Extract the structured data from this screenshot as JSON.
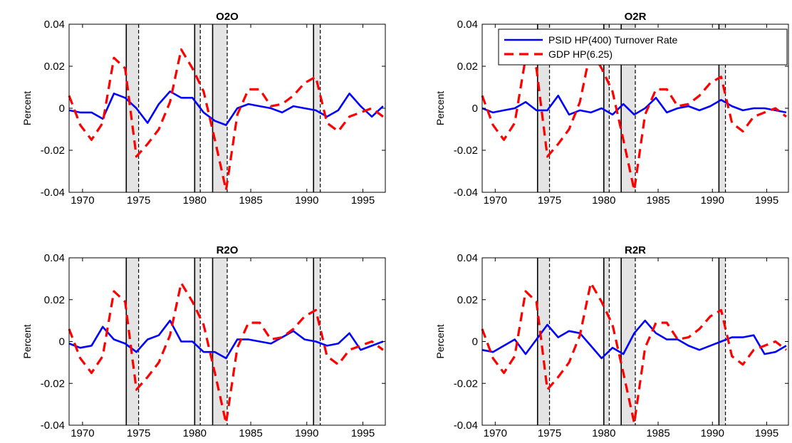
{
  "colors": {
    "turnover": "#0000ff",
    "gdp": "#ff0000",
    "recession_fill": "#e4e4e4",
    "axis": "#000000"
  },
  "legend": {
    "placement": "top-right of O2R panel",
    "entries": [
      "PSID HP(400) Turnover Rate",
      "GDP HP(6.25)"
    ]
  },
  "chart_data": [
    {
      "type": "line",
      "title": "O2O",
      "xlabel": "",
      "ylabel": "Percent",
      "xlim": [
        1968.8,
        1997
      ],
      "ylim": [
        -0.04,
        0.04
      ],
      "xticks": [
        1970,
        1975,
        1980,
        1985,
        1990,
        1995
      ],
      "yticks": [
        -0.04,
        -0.02,
        0,
        0.02,
        0.04
      ],
      "ytick_labels": [
        "-0.04",
        "-0.02",
        "0",
        "0.02",
        "0.04"
      ],
      "grid": false,
      "recessions": [
        [
          1973.9,
          1975.0
        ],
        [
          1980.0,
          1980.5
        ],
        [
          1981.6,
          1982.9
        ],
        [
          1990.6,
          1991.2
        ]
      ],
      "series": [
        {
          "name": "PSID HP(400) Turnover Rate",
          "style": "solid",
          "x": [
            1968.8,
            1969.8,
            1970.8,
            1971.8,
            1972.8,
            1973.8,
            1974.8,
            1975.8,
            1976.8,
            1977.8,
            1978.8,
            1979.8,
            1980.8,
            1981.8,
            1982.8,
            1983.8,
            1984.8,
            1985.8,
            1986.8,
            1987.8,
            1988.8,
            1989.8,
            1990.8,
            1991.8,
            1992.8,
            1993.8,
            1994.8,
            1995.8,
            1996.8
          ],
          "y": [
            -0.001,
            -0.002,
            -0.002,
            -0.005,
            0.007,
            0.005,
            0.0,
            -0.007,
            0.002,
            0.008,
            0.005,
            0.005,
            -0.002,
            -0.006,
            -0.008,
            0.0,
            0.002,
            0.001,
            0.0,
            -0.002,
            0.001,
            0.0,
            -0.001,
            -0.004,
            -0.001,
            0.007,
            0.001,
            -0.004,
            0.001
          ]
        },
        {
          "name": "GDP HP(6.25)",
          "style": "dashed",
          "x": [
            1968.8,
            1969.8,
            1970.8,
            1971.8,
            1972.8,
            1973.8,
            1974.8,
            1975.8,
            1976.8,
            1977.8,
            1978.8,
            1979.8,
            1980.8,
            1981.8,
            1982.8,
            1983.8,
            1984.8,
            1985.8,
            1986.8,
            1987.8,
            1988.8,
            1989.8,
            1990.8,
            1991.8,
            1992.8,
            1993.8,
            1994.8,
            1995.8,
            1996.8
          ],
          "y": [
            0.006,
            -0.008,
            -0.015,
            -0.007,
            0.024,
            0.019,
            -0.023,
            -0.017,
            -0.01,
            0.003,
            0.028,
            0.019,
            0.008,
            -0.015,
            -0.039,
            -0.003,
            0.009,
            0.009,
            0.001,
            0.002,
            0.006,
            0.012,
            0.015,
            -0.007,
            -0.011,
            -0.004,
            -0.002,
            0.0,
            -0.004
          ]
        }
      ]
    },
    {
      "type": "line",
      "title": "O2R",
      "xlabel": "",
      "ylabel": "Percent",
      "xlim": [
        1968.8,
        1997
      ],
      "ylim": [
        -0.04,
        0.04
      ],
      "xticks": [
        1970,
        1975,
        1980,
        1985,
        1990,
        1995
      ],
      "yticks": [
        -0.04,
        -0.02,
        0,
        0.02,
        0.04
      ],
      "ytick_labels": [
        "-0.04",
        "-0.02",
        "0",
        "0.02",
        "0.04"
      ],
      "grid": false,
      "recessions": [
        [
          1973.9,
          1975.0
        ],
        [
          1980.0,
          1980.5
        ],
        [
          1981.6,
          1982.9
        ],
        [
          1990.6,
          1991.2
        ]
      ],
      "series": [
        {
          "name": "PSID HP(400) Turnover Rate",
          "style": "solid",
          "x": [
            1968.8,
            1969.8,
            1970.8,
            1971.8,
            1972.8,
            1973.8,
            1974.8,
            1975.8,
            1976.8,
            1977.8,
            1978.8,
            1979.8,
            1980.8,
            1981.8,
            1982.8,
            1983.8,
            1984.8,
            1985.8,
            1986.8,
            1987.8,
            1988.8,
            1989.8,
            1990.8,
            1991.8,
            1992.8,
            1993.8,
            1994.8,
            1995.8,
            1996.8
          ],
          "y": [
            0.0,
            -0.002,
            -0.001,
            0.0,
            0.003,
            -0.001,
            -0.001,
            0.006,
            -0.003,
            -0.001,
            -0.002,
            0.0,
            -0.003,
            0.002,
            -0.003,
            0.0,
            0.005,
            -0.002,
            0.0,
            0.001,
            -0.001,
            0.001,
            0.004,
            0.001,
            -0.001,
            0.0,
            0.0,
            -0.001,
            -0.002
          ]
        },
        {
          "name": "GDP HP(6.25)",
          "style": "dashed",
          "x": [
            1968.8,
            1969.8,
            1970.8,
            1971.8,
            1972.8,
            1973.8,
            1974.8,
            1975.8,
            1976.8,
            1977.8,
            1978.8,
            1979.8,
            1980.8,
            1981.8,
            1982.8,
            1983.8,
            1984.8,
            1985.8,
            1986.8,
            1987.8,
            1988.8,
            1989.8,
            1990.8,
            1991.8,
            1992.8,
            1993.8,
            1994.8,
            1995.8,
            1996.8
          ],
          "y": [
            0.006,
            -0.008,
            -0.015,
            -0.007,
            0.024,
            0.019,
            -0.023,
            -0.017,
            -0.01,
            0.003,
            0.028,
            0.019,
            0.008,
            -0.015,
            -0.039,
            -0.003,
            0.009,
            0.009,
            0.001,
            0.002,
            0.006,
            0.012,
            0.015,
            -0.007,
            -0.011,
            -0.004,
            -0.002,
            0.0,
            -0.004
          ]
        }
      ]
    },
    {
      "type": "line",
      "title": "R2O",
      "xlabel": "",
      "ylabel": "Percent",
      "xlim": [
        1968.8,
        1997
      ],
      "ylim": [
        -0.04,
        0.04
      ],
      "xticks": [
        1970,
        1975,
        1980,
        1985,
        1990,
        1995
      ],
      "yticks": [
        -0.04,
        -0.02,
        0,
        0.02,
        0.04
      ],
      "ytick_labels": [
        "-0.04",
        "-0.02",
        "0",
        "0.02",
        "0.04"
      ],
      "grid": false,
      "recessions": [
        [
          1973.9,
          1975.0
        ],
        [
          1980.0,
          1980.5
        ],
        [
          1981.6,
          1982.9
        ],
        [
          1990.6,
          1991.2
        ]
      ],
      "series": [
        {
          "name": "PSID HP(400) Turnover Rate",
          "style": "solid",
          "x": [
            1968.8,
            1969.8,
            1970.8,
            1971.8,
            1972.8,
            1973.8,
            1974.8,
            1975.8,
            1976.8,
            1977.8,
            1978.8,
            1979.8,
            1980.8,
            1981.8,
            1982.8,
            1983.8,
            1984.8,
            1985.8,
            1986.8,
            1987.8,
            1988.8,
            1989.8,
            1990.8,
            1991.8,
            1992.8,
            1993.8,
            1994.8,
            1995.8,
            1996.8
          ],
          "y": [
            -0.001,
            -0.003,
            -0.002,
            0.007,
            0.001,
            -0.001,
            -0.005,
            0.001,
            0.003,
            0.01,
            0.0,
            0.0,
            -0.005,
            -0.005,
            -0.008,
            0.001,
            0.001,
            0.0,
            -0.001,
            0.002,
            0.005,
            0.001,
            0.0,
            -0.002,
            -0.001,
            0.004,
            -0.004,
            -0.002,
            0.0
          ]
        },
        {
          "name": "GDP HP(6.25)",
          "style": "dashed",
          "x": [
            1968.8,
            1969.8,
            1970.8,
            1971.8,
            1972.8,
            1973.8,
            1974.8,
            1975.8,
            1976.8,
            1977.8,
            1978.8,
            1979.8,
            1980.8,
            1981.8,
            1982.8,
            1983.8,
            1984.8,
            1985.8,
            1986.8,
            1987.8,
            1988.8,
            1989.8,
            1990.8,
            1991.8,
            1992.8,
            1993.8,
            1994.8,
            1995.8,
            1996.8
          ],
          "y": [
            0.006,
            -0.008,
            -0.015,
            -0.007,
            0.024,
            0.019,
            -0.023,
            -0.017,
            -0.01,
            0.003,
            0.028,
            0.019,
            0.008,
            -0.015,
            -0.039,
            -0.003,
            0.009,
            0.009,
            0.001,
            0.002,
            0.006,
            0.012,
            0.015,
            -0.007,
            -0.011,
            -0.004,
            -0.002,
            0.0,
            -0.004
          ]
        }
      ]
    },
    {
      "type": "line",
      "title": "R2R",
      "xlabel": "",
      "ylabel": "Percent",
      "xlim": [
        1968.8,
        1997
      ],
      "ylim": [
        -0.04,
        0.04
      ],
      "xticks": [
        1970,
        1975,
        1980,
        1985,
        1990,
        1995
      ],
      "yticks": [
        -0.04,
        -0.02,
        0,
        0.02,
        0.04
      ],
      "ytick_labels": [
        "-0.04",
        "-0.02",
        "0",
        "0.02",
        "0.04"
      ],
      "grid": false,
      "recessions": [
        [
          1973.9,
          1975.0
        ],
        [
          1980.0,
          1980.5
        ],
        [
          1981.6,
          1982.9
        ],
        [
          1990.6,
          1991.2
        ]
      ],
      "series": [
        {
          "name": "PSID HP(400) Turnover Rate",
          "style": "solid",
          "x": [
            1968.8,
            1969.8,
            1970.8,
            1971.8,
            1972.8,
            1973.8,
            1974.8,
            1975.8,
            1976.8,
            1977.8,
            1978.8,
            1979.8,
            1980.8,
            1981.8,
            1982.8,
            1983.8,
            1984.8,
            1985.8,
            1986.8,
            1987.8,
            1988.8,
            1989.8,
            1990.8,
            1991.8,
            1992.8,
            1993.8,
            1994.8,
            1995.8,
            1996.8
          ],
          "y": [
            -0.004,
            -0.005,
            -0.002,
            0.001,
            -0.006,
            0.001,
            0.008,
            0.002,
            0.005,
            0.004,
            -0.002,
            -0.008,
            -0.003,
            -0.006,
            0.004,
            0.01,
            0.004,
            0.001,
            0.001,
            -0.002,
            -0.004,
            -0.002,
            0.0,
            0.002,
            0.002,
            0.003,
            -0.006,
            -0.005,
            -0.002
          ]
        },
        {
          "name": "GDP HP(6.25)",
          "style": "dashed",
          "x": [
            1968.8,
            1969.8,
            1970.8,
            1971.8,
            1972.8,
            1973.8,
            1974.8,
            1975.8,
            1976.8,
            1977.8,
            1978.8,
            1979.8,
            1980.8,
            1981.8,
            1982.8,
            1983.8,
            1984.8,
            1985.8,
            1986.8,
            1987.8,
            1988.8,
            1989.8,
            1990.8,
            1991.8,
            1992.8,
            1993.8,
            1994.8,
            1995.8,
            1996.8
          ],
          "y": [
            0.006,
            -0.008,
            -0.015,
            -0.007,
            0.024,
            0.019,
            -0.023,
            -0.017,
            -0.01,
            0.003,
            0.028,
            0.019,
            0.008,
            -0.015,
            -0.039,
            -0.003,
            0.009,
            0.009,
            0.001,
            0.002,
            0.006,
            0.012,
            0.015,
            -0.007,
            -0.011,
            -0.004,
            -0.002,
            0.0,
            -0.004
          ]
        }
      ]
    }
  ]
}
